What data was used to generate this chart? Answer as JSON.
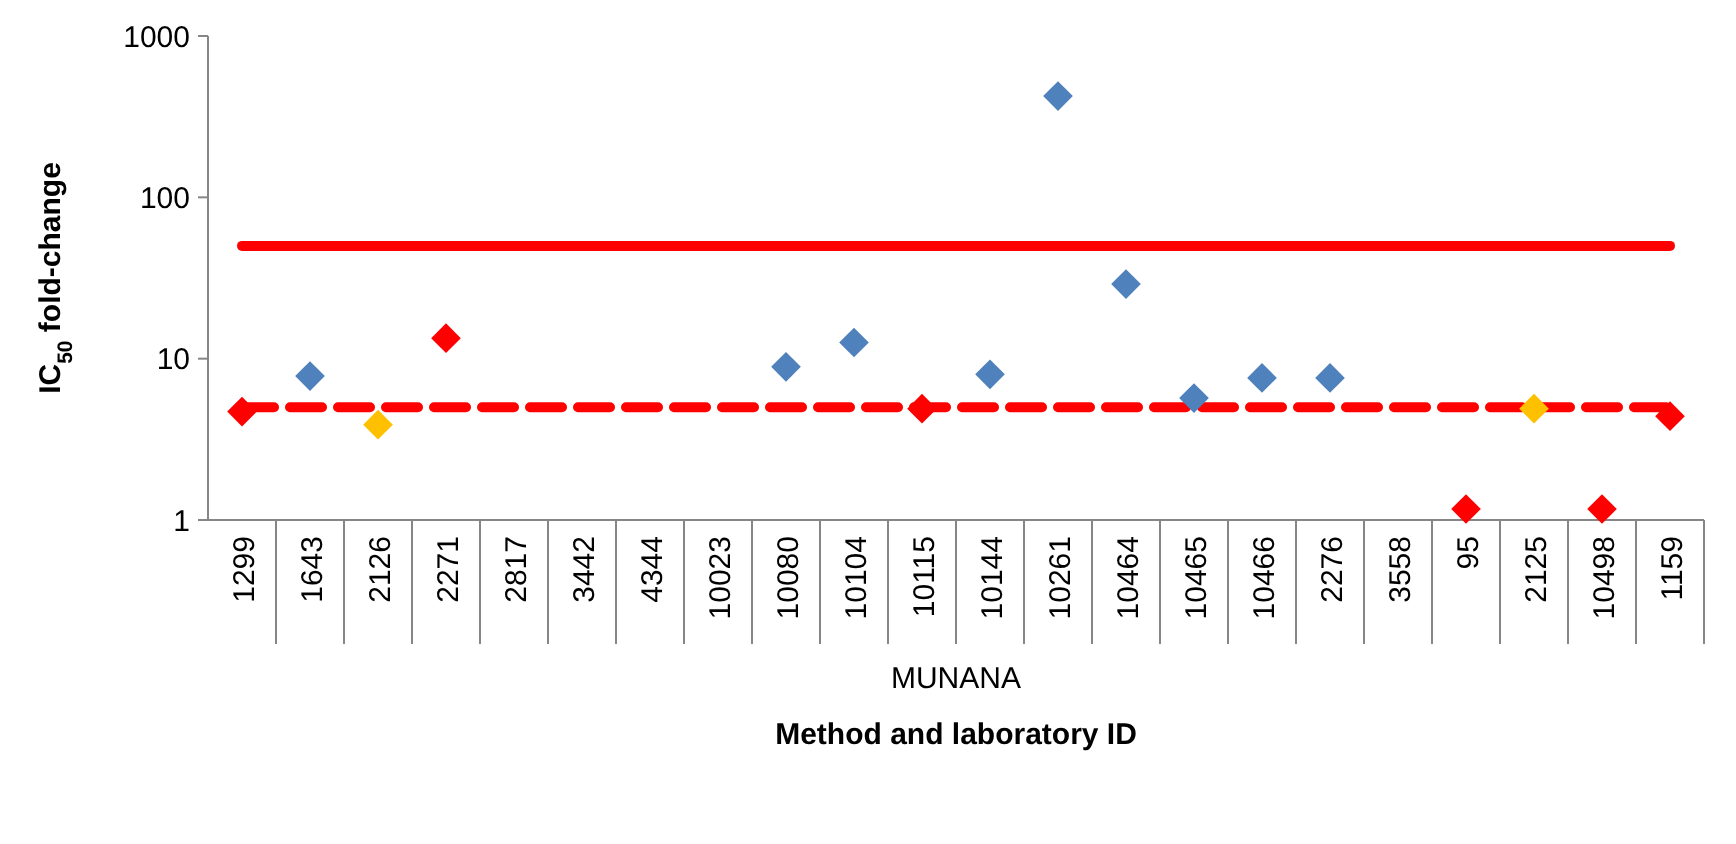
{
  "chart_data": {
    "type": "scatter",
    "xlabel": "Method and laboratory ID",
    "ylabel": "IC$_{50}$ fold-change",
    "categories": [
      "1299",
      "1643",
      "2126",
      "2271",
      "2817",
      "3442",
      "4344",
      "10023",
      "10080",
      "10104",
      "10115",
      "10144",
      "10261",
      "10464",
      "10465",
      "10466",
      "2276",
      "3558",
      "95",
      "2125",
      "10498",
      "1159"
    ],
    "values": [
      4.7,
      7.8,
      3.9,
      13.4,
      null,
      null,
      null,
      null,
      8.9,
      12.6,
      4.9,
      8.0,
      424,
      29,
      5.7,
      7.6,
      7.6,
      null,
      1.17,
      4.9,
      1.17,
      4.4
    ],
    "colors": [
      "#ff0000",
      "#4f81bd",
      "#ffc000",
      "#ff0000",
      null,
      null,
      null,
      null,
      "#4f81bd",
      "#4f81bd",
      "#ff0000",
      "#4f81bd",
      "#4f81bd",
      "#4f81bd",
      "#4f81bd",
      "#4f81bd",
      "#4f81bd",
      null,
      "#ff0000",
      "#ffc000",
      "#ff0000",
      "#ff0000"
    ],
    "log": true,
    "ylim": [
      1,
      1000
    ],
    "yticks": [
      1,
      10,
      100,
      1000
    ],
    "grid": false,
    "marker": "diamond",
    "ref_lines": [
      {
        "axis": "y",
        "value": 50,
        "color": "#ff0000",
        "line_style": "solid"
      },
      {
        "axis": "y",
        "value": 5,
        "color": "#ff0000",
        "line_style": "dashed"
      }
    ],
    "annotations": [
      "MUNANA"
    ]
  }
}
